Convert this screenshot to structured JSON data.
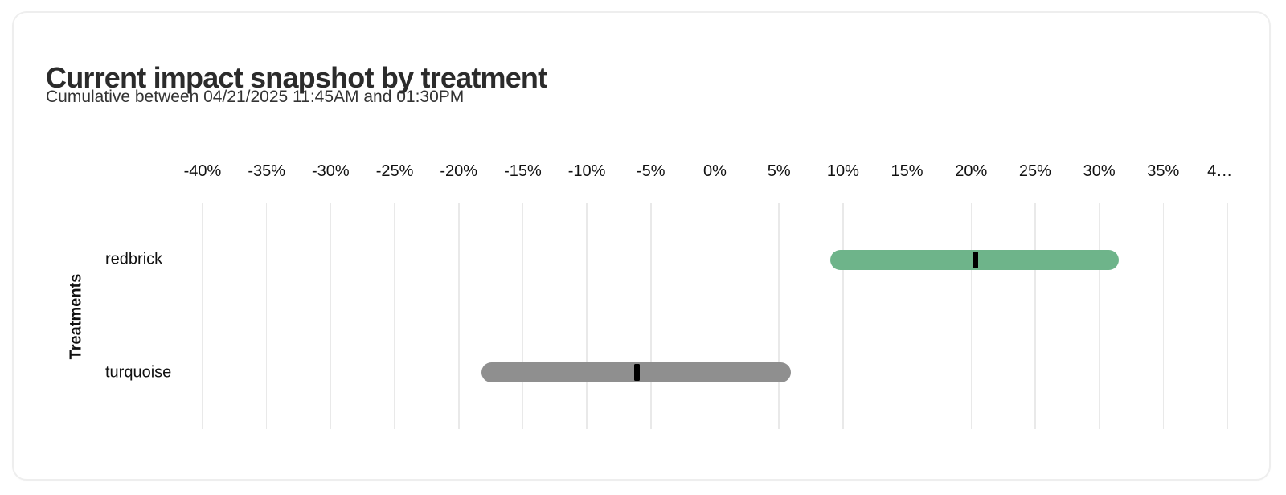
{
  "card": {
    "title": "Current impact snapshot by treatment",
    "subtitle": "Cumulative between 04/21/2025 11:45AM and 01:30PM"
  },
  "chart_data": {
    "type": "bar",
    "subtype": "horizontal-range-bar-with-point-estimate",
    "title": "Current impact snapshot by treatment",
    "subtitle": "Cumulative between 04/21/2025 11:45AM and 01:30PM",
    "xlabel": "",
    "ylabel": "Treatments",
    "xlim": [
      -40,
      40
    ],
    "x_unit": "%",
    "grid": true,
    "zero_line": true,
    "x_ticks": {
      "values": [
        -40,
        -35,
        -30,
        -25,
        -20,
        -15,
        -10,
        -5,
        0,
        5,
        10,
        15,
        20,
        25,
        30,
        35,
        40
      ],
      "labels": [
        "-40%",
        "-35%",
        "-30%",
        "-25%",
        "-20%",
        "-15%",
        "-10%",
        "-5%",
        "0%",
        "5%",
        "10%",
        "15%",
        "20%",
        "25%",
        "30%",
        "35%",
        "4…"
      ]
    },
    "categories": [
      "redbrick",
      "turquoise"
    ],
    "rows": [
      {
        "treatment": "redbrick",
        "lower": 9.0,
        "upper": 31.5,
        "estimate": 20.3,
        "bar_color": "#6eb48a"
      },
      {
        "treatment": "turquoise",
        "lower": -18.2,
        "upper": 5.9,
        "estimate": -6.1,
        "bar_color": "#8f8f8f"
      }
    ]
  },
  "colors": {
    "positive_bar": "#6eb48a",
    "neutral_bar": "#8f8f8f",
    "estimate_marker": "#000000",
    "zero_line": "#000000",
    "gridline": "#e9e9e9",
    "card_border": "#eeeeee",
    "title_text": "#2b2b2b",
    "body_text": "#111111"
  }
}
